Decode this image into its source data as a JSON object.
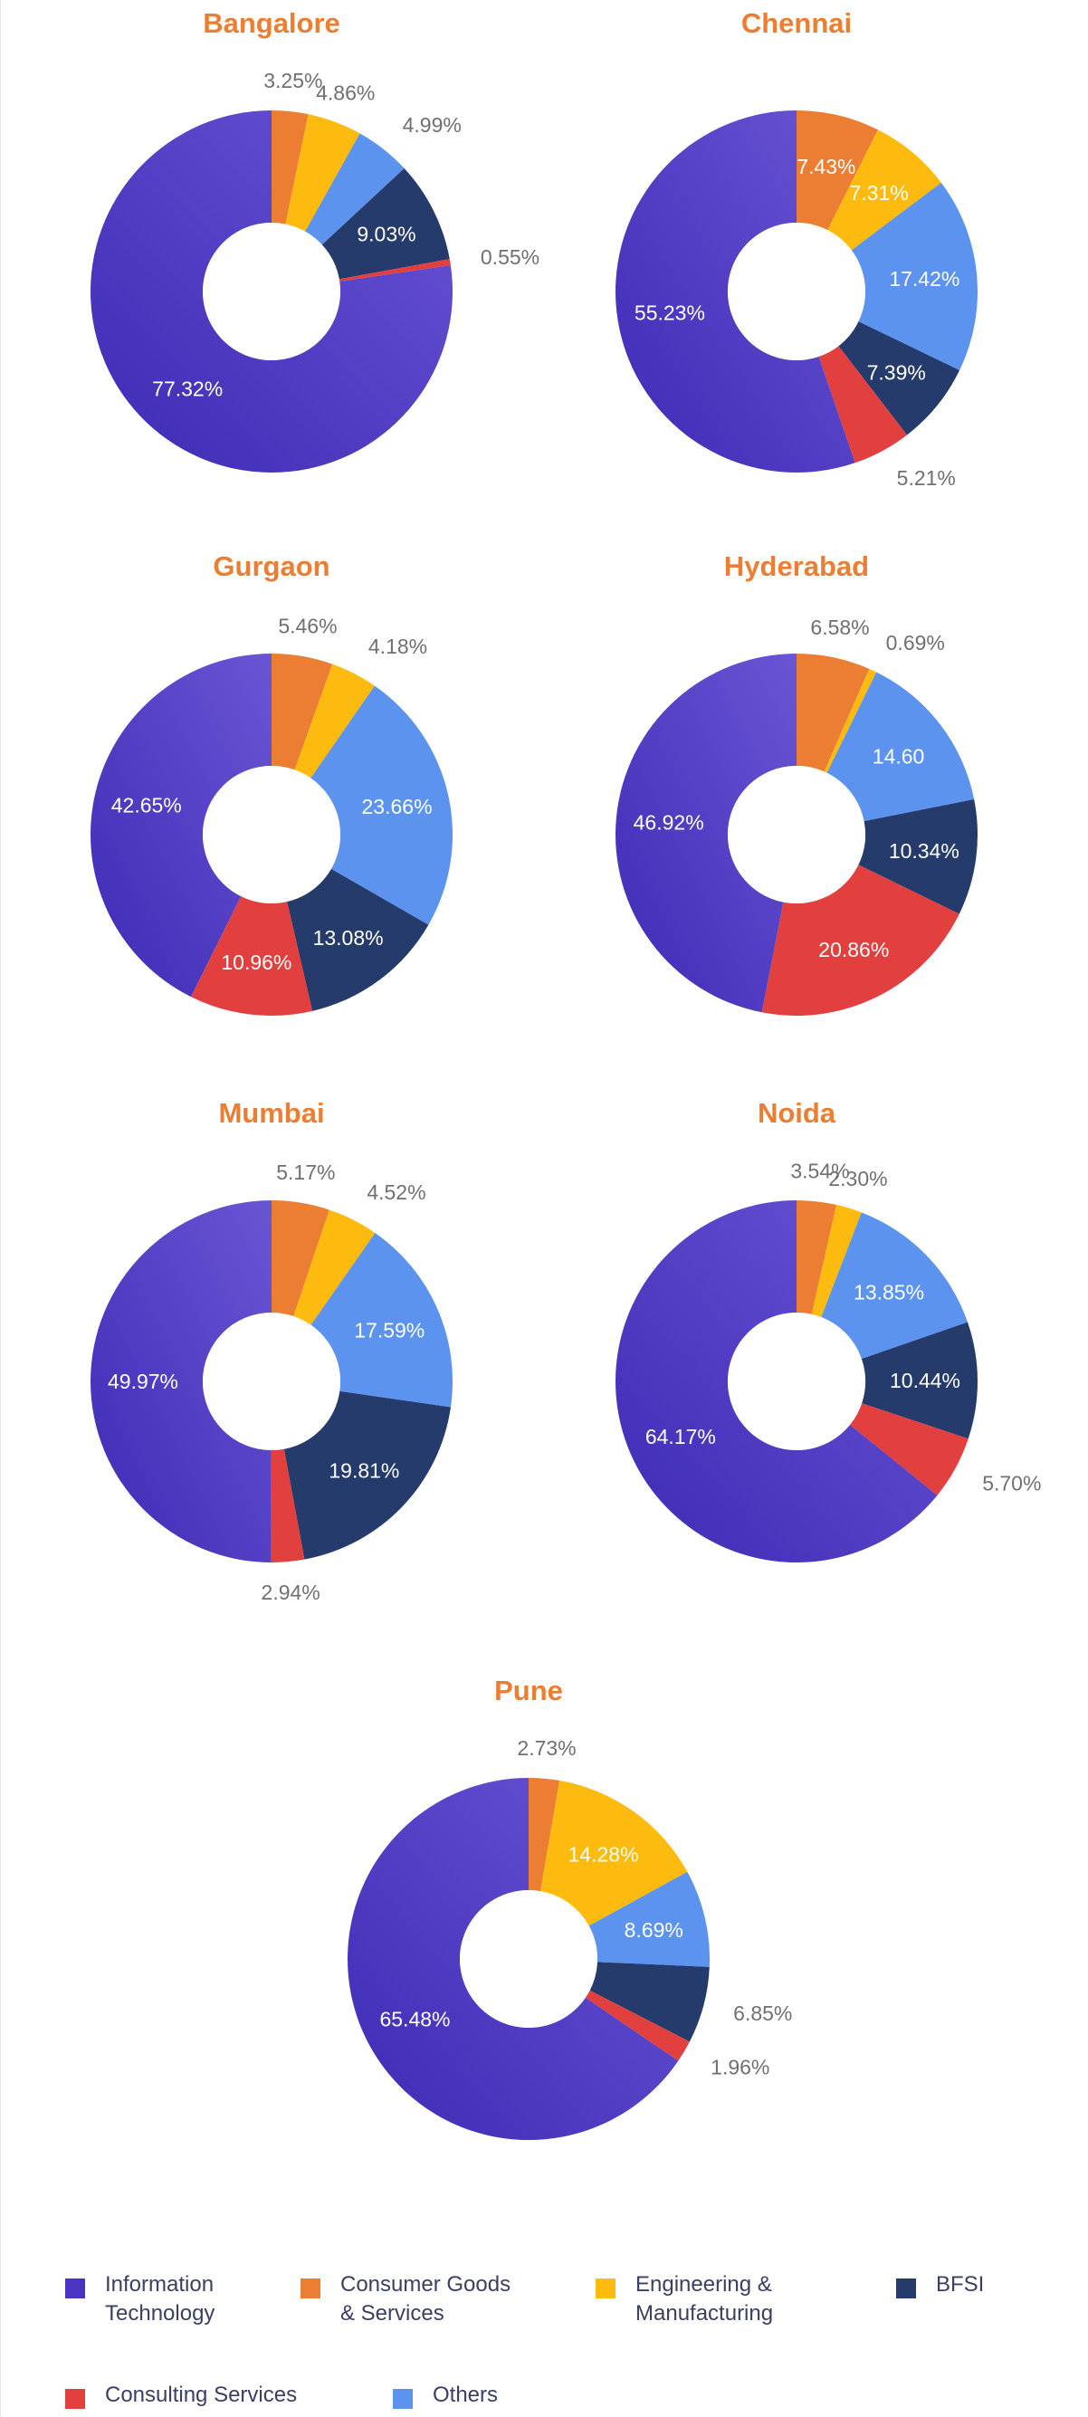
{
  "colors": {
    "information_technology": "#4a35c2",
    "consumer_goods": "#ec7e33",
    "engineering": "#fdbb10",
    "bfsi": "#253b6b",
    "consulting": "#e23f3f",
    "others": "#5b93ee"
  },
  "legend": [
    {
      "key": "information_technology",
      "label": "Information\nTechnology"
    },
    {
      "key": "consumer_goods",
      "label": "Consumer Goods\n& Services"
    },
    {
      "key": "engineering",
      "label": "Engineering &\nManufacturing"
    },
    {
      "key": "bfsi",
      "label": "BFSI"
    },
    {
      "key": "consulting",
      "label": "Consulting Services"
    },
    {
      "key": "others",
      "label": "Others"
    }
  ],
  "chart_data": [
    {
      "type": "pie",
      "title": "Bangalore",
      "slices": [
        {
          "key": "consumer_goods",
          "value": 3.25,
          "label": "3.25%"
        },
        {
          "key": "engineering",
          "value": 4.86,
          "label": "4.86%"
        },
        {
          "key": "others",
          "value": 4.99,
          "label": "4.99%"
        },
        {
          "key": "bfsi",
          "value": 9.03,
          "label": "9.03%"
        },
        {
          "key": "consulting",
          "value": 0.55,
          "label": "0.55%"
        },
        {
          "key": "information_technology",
          "value": 77.32,
          "label": "77.32%"
        }
      ]
    },
    {
      "type": "pie",
      "title": "Chennai",
      "slices": [
        {
          "key": "consumer_goods",
          "value": 7.43,
          "label": "7.43%"
        },
        {
          "key": "engineering",
          "value": 7.31,
          "label": "7.31%"
        },
        {
          "key": "others",
          "value": 17.42,
          "label": "17.42%"
        },
        {
          "key": "bfsi",
          "value": 7.39,
          "label": "7.39%"
        },
        {
          "key": "consulting",
          "value": 5.21,
          "label": "5.21%"
        },
        {
          "key": "information_technology",
          "value": 55.23,
          "label": "55.23%"
        }
      ]
    },
    {
      "type": "pie",
      "title": "Gurgaon",
      "slices": [
        {
          "key": "consumer_goods",
          "value": 5.46,
          "label": "5.46%"
        },
        {
          "key": "engineering",
          "value": 4.18,
          "label": "4.18%"
        },
        {
          "key": "others",
          "value": 23.66,
          "label": "23.66%"
        },
        {
          "key": "bfsi",
          "value": 13.08,
          "label": "13.08%"
        },
        {
          "key": "consulting",
          "value": 10.96,
          "label": "10.96%"
        },
        {
          "key": "information_technology",
          "value": 42.65,
          "label": "42.65%"
        }
      ]
    },
    {
      "type": "pie",
      "title": "Hyderabad",
      "slices": [
        {
          "key": "consumer_goods",
          "value": 6.58,
          "label": "6.58%"
        },
        {
          "key": "engineering",
          "value": 0.69,
          "label": "0.69%"
        },
        {
          "key": "others",
          "value": 14.6,
          "label": "14.60"
        },
        {
          "key": "bfsi",
          "value": 10.34,
          "label": "10.34%"
        },
        {
          "key": "consulting",
          "value": 20.86,
          "label": "20.86%"
        },
        {
          "key": "information_technology",
          "value": 46.92,
          "label": "46.92%"
        }
      ]
    },
    {
      "type": "pie",
      "title": "Mumbai",
      "slices": [
        {
          "key": "consumer_goods",
          "value": 5.17,
          "label": "5.17%"
        },
        {
          "key": "engineering",
          "value": 4.52,
          "label": "4.52%"
        },
        {
          "key": "others",
          "value": 17.59,
          "label": "17.59%"
        },
        {
          "key": "bfsi",
          "value": 19.81,
          "label": "19.81%"
        },
        {
          "key": "consulting",
          "value": 2.94,
          "label": "2.94%"
        },
        {
          "key": "information_technology",
          "value": 49.97,
          "label": "49.97%"
        }
      ]
    },
    {
      "type": "pie",
      "title": "Noida",
      "slices": [
        {
          "key": "consumer_goods",
          "value": 3.54,
          "label": "3.54%"
        },
        {
          "key": "engineering",
          "value": 2.3,
          "label": "2.30%"
        },
        {
          "key": "others",
          "value": 13.85,
          "label": "13.85%"
        },
        {
          "key": "bfsi",
          "value": 10.44,
          "label": "10.44%"
        },
        {
          "key": "consulting",
          "value": 5.7,
          "label": "5.70%"
        },
        {
          "key": "information_technology",
          "value": 64.17,
          "label": "64.17%"
        }
      ]
    },
    {
      "type": "pie",
      "title": "Pune",
      "slices": [
        {
          "key": "consumer_goods",
          "value": 2.73,
          "label": "2.73%"
        },
        {
          "key": "engineering",
          "value": 14.28,
          "label": "14.28%"
        },
        {
          "key": "others",
          "value": 8.69,
          "label": "8.69%"
        },
        {
          "key": "bfsi",
          "value": 6.85,
          "label": "6.85%"
        },
        {
          "key": "consulting",
          "value": 1.96,
          "label": "1.96%"
        },
        {
          "key": "information_technology",
          "value": 65.48,
          "label": "65.48%"
        }
      ]
    }
  ]
}
